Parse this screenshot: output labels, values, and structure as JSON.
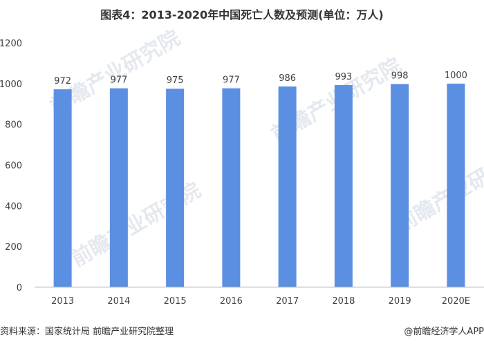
{
  "title": "图表4：2013-2020年中国死亡人数及预测(单位：万人)",
  "source": "资料来源：国家统计局 前瞻产业研究院整理",
  "credit": "@前瞻经济学人APP",
  "watermark": "前瞻产业研究院",
  "colors": {
    "bar": "#5b8fe1",
    "axis": "#bfbfbf",
    "text": "#404040"
  },
  "chart_data": {
    "type": "bar",
    "title": "图表4：2013-2020年中国死亡人数及预测(单位：万人)",
    "categories": [
      "2013",
      "2014",
      "2015",
      "2016",
      "2017",
      "2018",
      "2019",
      "2020E"
    ],
    "values": [
      972,
      977,
      975,
      977,
      986,
      993,
      998,
      1000
    ],
    "ylim": [
      0,
      1200
    ],
    "yticks": [
      0,
      200,
      400,
      600,
      800,
      1000,
      1200
    ],
    "grid": false,
    "legend": "none"
  }
}
